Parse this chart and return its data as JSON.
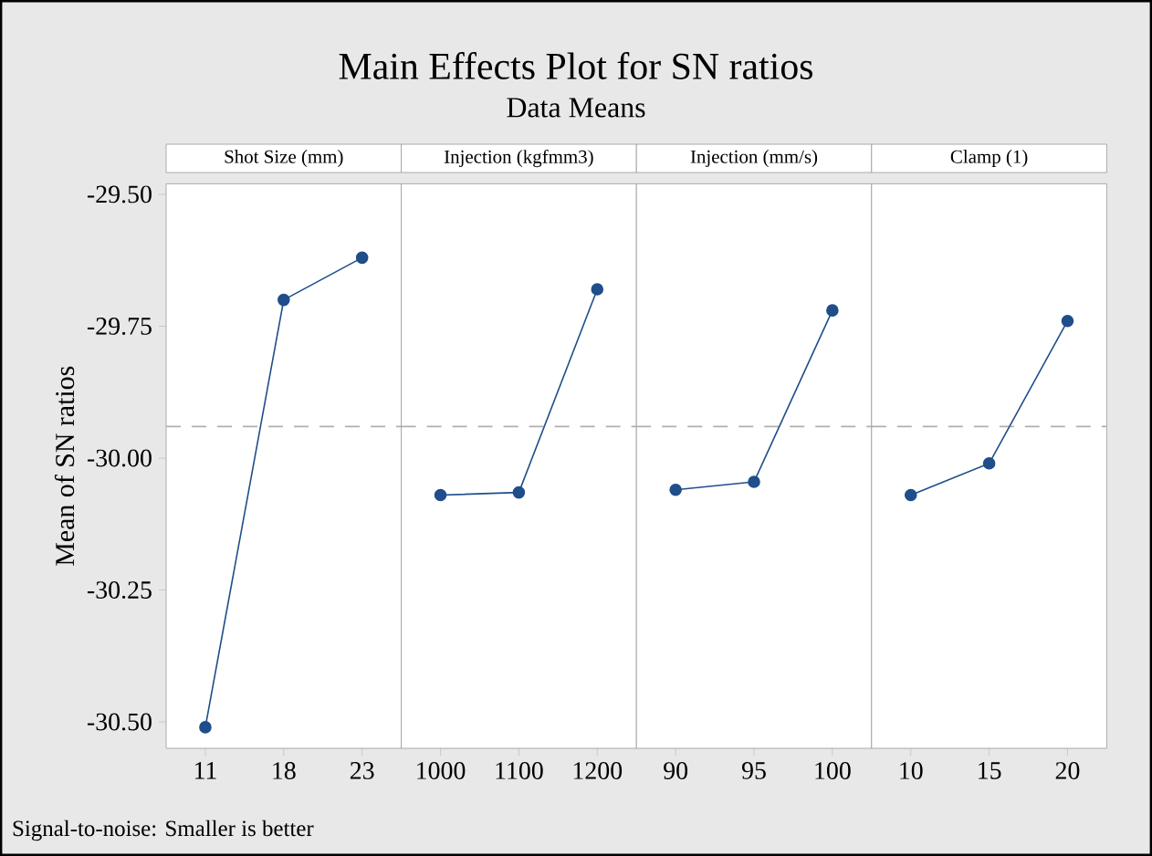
{
  "chart_data": [
    {
      "type": "other",
      "title": "Main Effects Plot for SN ratios",
      "subtitle": "Data Means",
      "annotations": [
        "Signal-to-noise: Smaller is better"
      ]
    },
    {
      "type": "line",
      "title": "Shot Size (mm)",
      "ylabel": "Mean of SN ratios",
      "categories": [
        "11",
        "18",
        "23"
      ],
      "values": [
        -30.51,
        -29.7,
        -29.62
      ],
      "color": "#1f4e8a",
      "marker": "circle",
      "line_style": "solid",
      "ylim": [
        -30.55,
        -29.48
      ],
      "yticks": [
        {
          "value": -29.5,
          "label": "-29.50"
        },
        {
          "value": -29.75,
          "label": "-29.75"
        },
        {
          "value": -30.0,
          "label": "-30.00"
        },
        {
          "value": -30.25,
          "label": "-30.25"
        },
        {
          "value": -30.5,
          "label": "-30.50"
        }
      ],
      "ref_lines": [
        {
          "axis": "y",
          "value": -29.94,
          "color": "#b0b0b0",
          "line_style": "dashed"
        }
      ]
    },
    {
      "type": "line",
      "title": "Injection (kgfmm3)",
      "categories": [
        "1000",
        "1100",
        "1200"
      ],
      "values": [
        -30.07,
        -30.065,
        -29.68
      ],
      "color": "#1f4e8a",
      "marker": "circle",
      "line_style": "solid",
      "ylim": [
        -30.55,
        -29.48
      ],
      "tick_labels": "x",
      "ref_lines": [
        {
          "axis": "y",
          "value": -29.94,
          "color": "#b0b0b0",
          "line_style": "dashed"
        }
      ]
    },
    {
      "type": "line",
      "title": "Injection (mm/s)",
      "categories": [
        "90",
        "95",
        "100"
      ],
      "values": [
        -30.06,
        -30.045,
        -29.72
      ],
      "color": "#1f4e8a",
      "marker": "circle",
      "line_style": "solid",
      "ylim": [
        -30.55,
        -29.48
      ],
      "tick_labels": "x",
      "ref_lines": [
        {
          "axis": "y",
          "value": -29.94,
          "color": "#b0b0b0",
          "line_style": "dashed"
        }
      ]
    },
    {
      "type": "line",
      "title": "Clamp (1)",
      "categories": [
        "10",
        "15",
        "20"
      ],
      "values": [
        -30.07,
        -30.01,
        -29.74
      ],
      "color": "#1f4e8a",
      "marker": "circle",
      "line_style": "solid",
      "ylim": [
        -30.55,
        -29.48
      ],
      "tick_labels": "x",
      "ref_lines": [
        {
          "axis": "y",
          "value": -29.94,
          "color": "#b0b0b0",
          "line_style": "dashed"
        }
      ]
    }
  ]
}
